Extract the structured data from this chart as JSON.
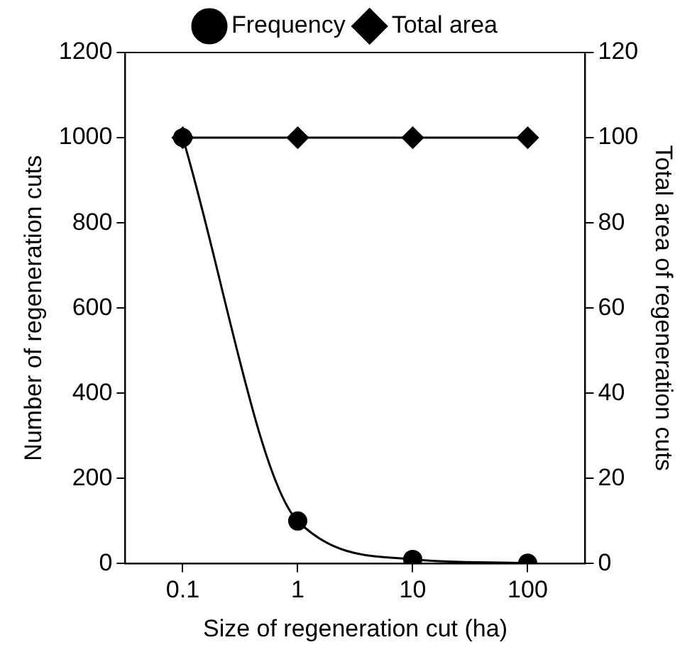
{
  "chart_data": {
    "type": "line",
    "xlabel": "Size of regeneration cut (ha)",
    "ylabel": "Number of regeneration cuts",
    "y2label": "Total area of regeneration cuts",
    "categories": [
      "0.1",
      "1",
      "10",
      "100"
    ],
    "series": [
      {
        "name": "Frequency",
        "color": "#000000",
        "marker": "circle",
        "values": [
          1000,
          100,
          10,
          1
        ]
      },
      {
        "name": "Total area",
        "color": "#000000",
        "marker": "diamond",
        "axis": "y2",
        "values": [
          100,
          100,
          100,
          100
        ]
      }
    ],
    "ylim": [
      0,
      1200
    ],
    "yticks": [
      0,
      200,
      400,
      600,
      800,
      1000,
      1200
    ],
    "y2lim": [
      0,
      120
    ],
    "y2ticks": [
      0,
      20,
      40,
      60,
      80,
      100,
      120
    ],
    "grid": false,
    "legend": "top",
    "line_style": "solid"
  }
}
